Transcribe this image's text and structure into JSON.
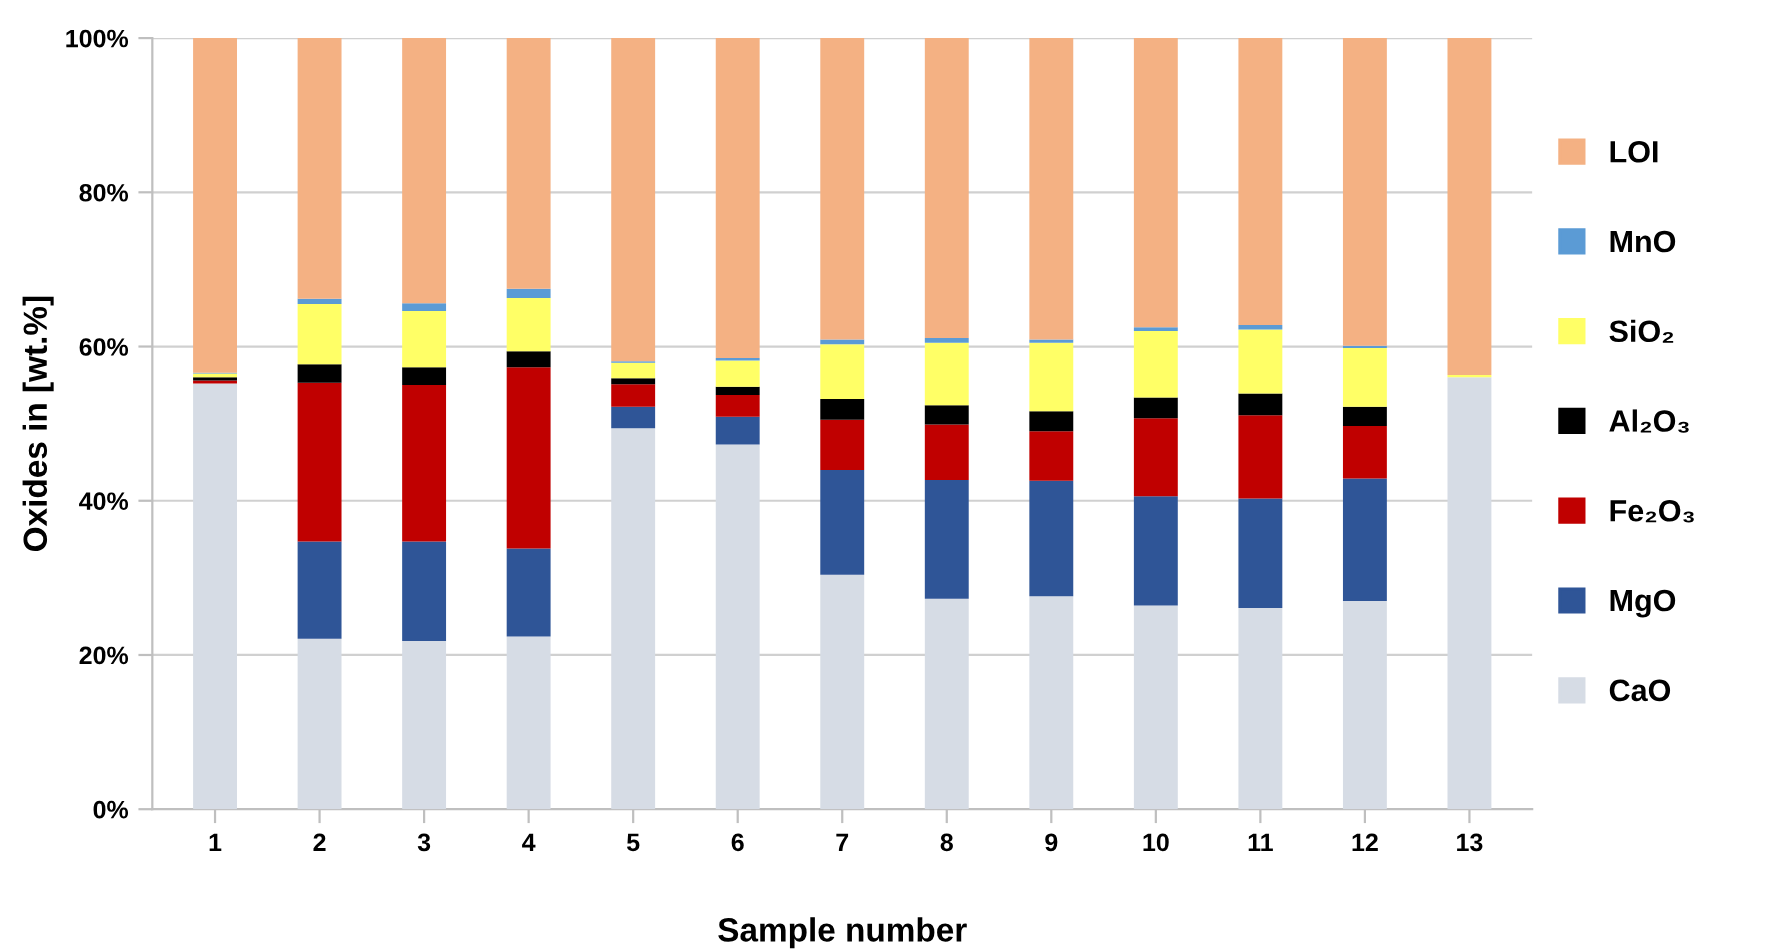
{
  "chart_data": {
    "type": "bar",
    "stacked": true,
    "xlabel": "Sample number",
    "ylabel": "Oxides in [wt.%]",
    "categories": [
      "1",
      "2",
      "3",
      "4",
      "5",
      "6",
      "7",
      "8",
      "9",
      "10",
      "11",
      "12",
      "13"
    ],
    "series": [
      {
        "name": "CaO",
        "color": "#d6dce5",
        "values": [
          55.2,
          22.1,
          21.8,
          22.4,
          49.4,
          47.3,
          30.4,
          27.3,
          27.6,
          26.4,
          26.1,
          27.0,
          56.0
        ]
      },
      {
        "name": "MgO",
        "color": "#2f5597",
        "values": [
          0,
          12.6,
          12.9,
          11.4,
          2.8,
          3.6,
          13.6,
          15.4,
          15.0,
          14.2,
          14.2,
          15.9,
          0
        ]
      },
      {
        "name": "Fe₂O₃",
        "color": "#c00000",
        "values": [
          0.4,
          20.6,
          20.3,
          23.5,
          2.9,
          2.8,
          6.5,
          7.2,
          6.4,
          10.1,
          10.8,
          6.8,
          0
        ]
      },
      {
        "name": "Al₂O₃",
        "color": "#000000",
        "values": [
          0.4,
          2.4,
          2.3,
          2.1,
          0.8,
          1.1,
          2.7,
          2.5,
          2.6,
          2.7,
          2.8,
          2.5,
          0
        ]
      },
      {
        "name": "SiO₂",
        "color": "#ffff66",
        "values": [
          0.5,
          7.8,
          7.3,
          6.9,
          2.0,
          3.4,
          7.1,
          8.1,
          8.9,
          8.6,
          8.3,
          7.6,
          0.3
        ]
      },
      {
        "name": "MnO",
        "color": "#5b9bd5",
        "values": [
          0.1,
          0.7,
          1.0,
          1.2,
          0.2,
          0.3,
          0.6,
          0.6,
          0.4,
          0.5,
          0.6,
          0.3,
          0
        ]
      },
      {
        "name": "LOI",
        "color": "#f4b183",
        "values": [
          43.4,
          33.8,
          34.4,
          32.5,
          41.9,
          41.5,
          39.1,
          38.9,
          39.1,
          37.5,
          37.2,
          39.9,
          43.7
        ]
      }
    ],
    "ylim": [
      0,
      100
    ],
    "yticks": [
      {
        "value": 0,
        "label": "0%"
      },
      {
        "value": 20,
        "label": "20%"
      },
      {
        "value": 40,
        "label": "40%"
      },
      {
        "value": 60,
        "label": "60%"
      },
      {
        "value": 80,
        "label": "80%"
      },
      {
        "value": 100,
        "label": "100%"
      }
    ],
    "grid": "y",
    "legend": "right"
  }
}
